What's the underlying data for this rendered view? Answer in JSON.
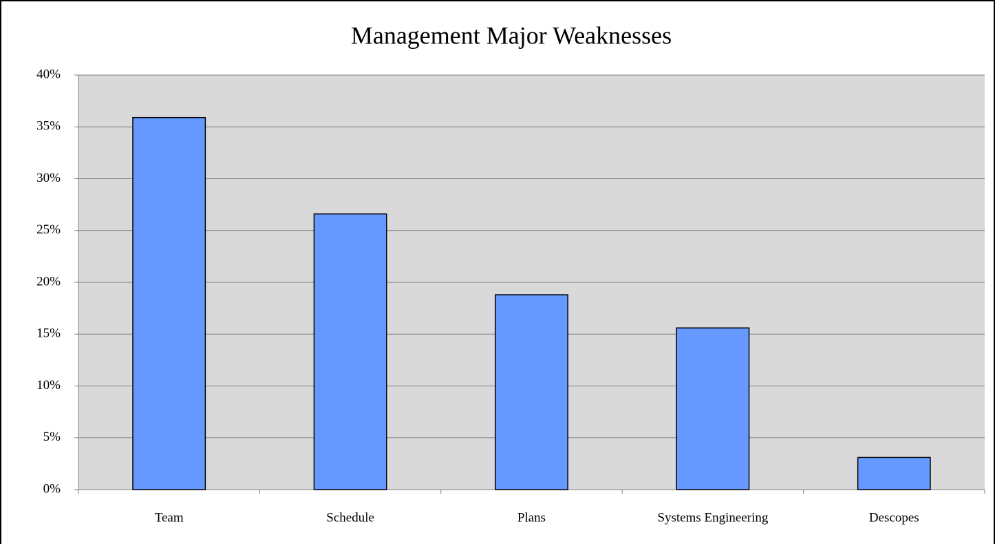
{
  "chart_data": {
    "type": "bar",
    "title": "Management Major Weaknesses",
    "categories": [
      "Team",
      "Schedule",
      "Plans",
      "Systems Engineering",
      "Descopes"
    ],
    "values": [
      35.9,
      26.6,
      18.8,
      15.6,
      3.1
    ],
    "color": "#6699ff",
    "ylim": [
      0,
      40
    ],
    "yticks": [
      {
        "value": 0,
        "label": "0%"
      },
      {
        "value": 5,
        "label": "5%"
      },
      {
        "value": 10,
        "label": "10%"
      },
      {
        "value": 15,
        "label": "15%"
      },
      {
        "value": 20,
        "label": "20%"
      },
      {
        "value": 25,
        "label": "25%"
      },
      {
        "value": 30,
        "label": "30%"
      },
      {
        "value": 35,
        "label": "35%"
      },
      {
        "value": 40,
        "label": "40%"
      }
    ],
    "grid": true
  }
}
